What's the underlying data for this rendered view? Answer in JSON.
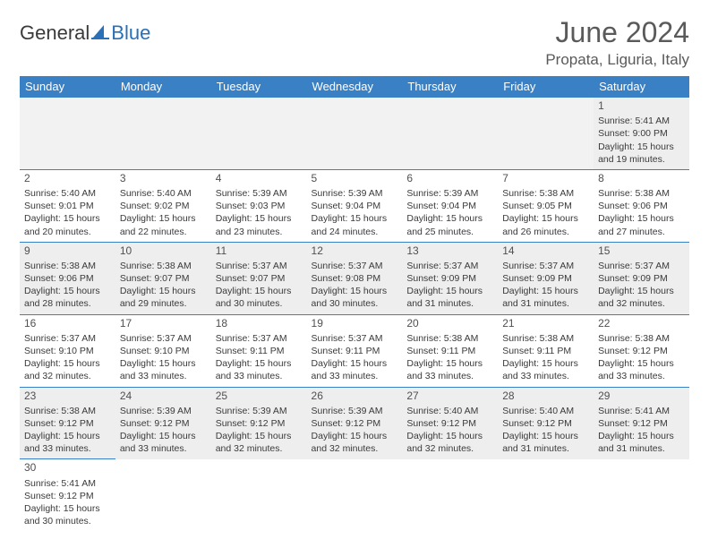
{
  "logo": {
    "text1": "General",
    "text2": "Blue"
  },
  "header": {
    "title": "June 2024",
    "location": "Propata, Liguria, Italy"
  },
  "weekdays": [
    "Sunday",
    "Monday",
    "Tuesday",
    "Wednesday",
    "Thursday",
    "Friday",
    "Saturday"
  ],
  "colors": {
    "header_bg": "#3a80c4",
    "header_fg": "#ffffff",
    "gray_row": "#eeeeee",
    "border": "#3a80c4",
    "text": "#3a3a3a"
  },
  "weeks": [
    {
      "shade": "gray",
      "days": [
        null,
        null,
        null,
        null,
        null,
        null,
        {
          "n": "1",
          "sunrise": "Sunrise: 5:41 AM",
          "sunset": "Sunset: 9:00 PM",
          "day1": "Daylight: 15 hours",
          "day2": "and 19 minutes."
        }
      ]
    },
    {
      "shade": "white",
      "days": [
        {
          "n": "2",
          "sunrise": "Sunrise: 5:40 AM",
          "sunset": "Sunset: 9:01 PM",
          "day1": "Daylight: 15 hours",
          "day2": "and 20 minutes."
        },
        {
          "n": "3",
          "sunrise": "Sunrise: 5:40 AM",
          "sunset": "Sunset: 9:02 PM",
          "day1": "Daylight: 15 hours",
          "day2": "and 22 minutes."
        },
        {
          "n": "4",
          "sunrise": "Sunrise: 5:39 AM",
          "sunset": "Sunset: 9:03 PM",
          "day1": "Daylight: 15 hours",
          "day2": "and 23 minutes."
        },
        {
          "n": "5",
          "sunrise": "Sunrise: 5:39 AM",
          "sunset": "Sunset: 9:04 PM",
          "day1": "Daylight: 15 hours",
          "day2": "and 24 minutes."
        },
        {
          "n": "6",
          "sunrise": "Sunrise: 5:39 AM",
          "sunset": "Sunset: 9:04 PM",
          "day1": "Daylight: 15 hours",
          "day2": "and 25 minutes."
        },
        {
          "n": "7",
          "sunrise": "Sunrise: 5:38 AM",
          "sunset": "Sunset: 9:05 PM",
          "day1": "Daylight: 15 hours",
          "day2": "and 26 minutes."
        },
        {
          "n": "8",
          "sunrise": "Sunrise: 5:38 AM",
          "sunset": "Sunset: 9:06 PM",
          "day1": "Daylight: 15 hours",
          "day2": "and 27 minutes."
        }
      ]
    },
    {
      "shade": "gray",
      "days": [
        {
          "n": "9",
          "sunrise": "Sunrise: 5:38 AM",
          "sunset": "Sunset: 9:06 PM",
          "day1": "Daylight: 15 hours",
          "day2": "and 28 minutes."
        },
        {
          "n": "10",
          "sunrise": "Sunrise: 5:38 AM",
          "sunset": "Sunset: 9:07 PM",
          "day1": "Daylight: 15 hours",
          "day2": "and 29 minutes."
        },
        {
          "n": "11",
          "sunrise": "Sunrise: 5:37 AM",
          "sunset": "Sunset: 9:07 PM",
          "day1": "Daylight: 15 hours",
          "day2": "and 30 minutes."
        },
        {
          "n": "12",
          "sunrise": "Sunrise: 5:37 AM",
          "sunset": "Sunset: 9:08 PM",
          "day1": "Daylight: 15 hours",
          "day2": "and 30 minutes."
        },
        {
          "n": "13",
          "sunrise": "Sunrise: 5:37 AM",
          "sunset": "Sunset: 9:09 PM",
          "day1": "Daylight: 15 hours",
          "day2": "and 31 minutes."
        },
        {
          "n": "14",
          "sunrise": "Sunrise: 5:37 AM",
          "sunset": "Sunset: 9:09 PM",
          "day1": "Daylight: 15 hours",
          "day2": "and 31 minutes."
        },
        {
          "n": "15",
          "sunrise": "Sunrise: 5:37 AM",
          "sunset": "Sunset: 9:09 PM",
          "day1": "Daylight: 15 hours",
          "day2": "and 32 minutes."
        }
      ]
    },
    {
      "shade": "white",
      "days": [
        {
          "n": "16",
          "sunrise": "Sunrise: 5:37 AM",
          "sunset": "Sunset: 9:10 PM",
          "day1": "Daylight: 15 hours",
          "day2": "and 32 minutes."
        },
        {
          "n": "17",
          "sunrise": "Sunrise: 5:37 AM",
          "sunset": "Sunset: 9:10 PM",
          "day1": "Daylight: 15 hours",
          "day2": "and 33 minutes."
        },
        {
          "n": "18",
          "sunrise": "Sunrise: 5:37 AM",
          "sunset": "Sunset: 9:11 PM",
          "day1": "Daylight: 15 hours",
          "day2": "and 33 minutes."
        },
        {
          "n": "19",
          "sunrise": "Sunrise: 5:37 AM",
          "sunset": "Sunset: 9:11 PM",
          "day1": "Daylight: 15 hours",
          "day2": "and 33 minutes."
        },
        {
          "n": "20",
          "sunrise": "Sunrise: 5:38 AM",
          "sunset": "Sunset: 9:11 PM",
          "day1": "Daylight: 15 hours",
          "day2": "and 33 minutes."
        },
        {
          "n": "21",
          "sunrise": "Sunrise: 5:38 AM",
          "sunset": "Sunset: 9:11 PM",
          "day1": "Daylight: 15 hours",
          "day2": "and 33 minutes."
        },
        {
          "n": "22",
          "sunrise": "Sunrise: 5:38 AM",
          "sunset": "Sunset: 9:12 PM",
          "day1": "Daylight: 15 hours",
          "day2": "and 33 minutes."
        }
      ]
    },
    {
      "shade": "gray",
      "days": [
        {
          "n": "23",
          "sunrise": "Sunrise: 5:38 AM",
          "sunset": "Sunset: 9:12 PM",
          "day1": "Daylight: 15 hours",
          "day2": "and 33 minutes."
        },
        {
          "n": "24",
          "sunrise": "Sunrise: 5:39 AM",
          "sunset": "Sunset: 9:12 PM",
          "day1": "Daylight: 15 hours",
          "day2": "and 33 minutes."
        },
        {
          "n": "25",
          "sunrise": "Sunrise: 5:39 AM",
          "sunset": "Sunset: 9:12 PM",
          "day1": "Daylight: 15 hours",
          "day2": "and 32 minutes."
        },
        {
          "n": "26",
          "sunrise": "Sunrise: 5:39 AM",
          "sunset": "Sunset: 9:12 PM",
          "day1": "Daylight: 15 hours",
          "day2": "and 32 minutes."
        },
        {
          "n": "27",
          "sunrise": "Sunrise: 5:40 AM",
          "sunset": "Sunset: 9:12 PM",
          "day1": "Daylight: 15 hours",
          "day2": "and 32 minutes."
        },
        {
          "n": "28",
          "sunrise": "Sunrise: 5:40 AM",
          "sunset": "Sunset: 9:12 PM",
          "day1": "Daylight: 15 hours",
          "day2": "and 31 minutes."
        },
        {
          "n": "29",
          "sunrise": "Sunrise: 5:41 AM",
          "sunset": "Sunset: 9:12 PM",
          "day1": "Daylight: 15 hours",
          "day2": "and 31 minutes."
        }
      ]
    },
    {
      "shade": "white",
      "days": [
        {
          "n": "30",
          "sunrise": "Sunrise: 5:41 AM",
          "sunset": "Sunset: 9:12 PM",
          "day1": "Daylight: 15 hours",
          "day2": "and 30 minutes."
        },
        null,
        null,
        null,
        null,
        null,
        null
      ]
    }
  ]
}
